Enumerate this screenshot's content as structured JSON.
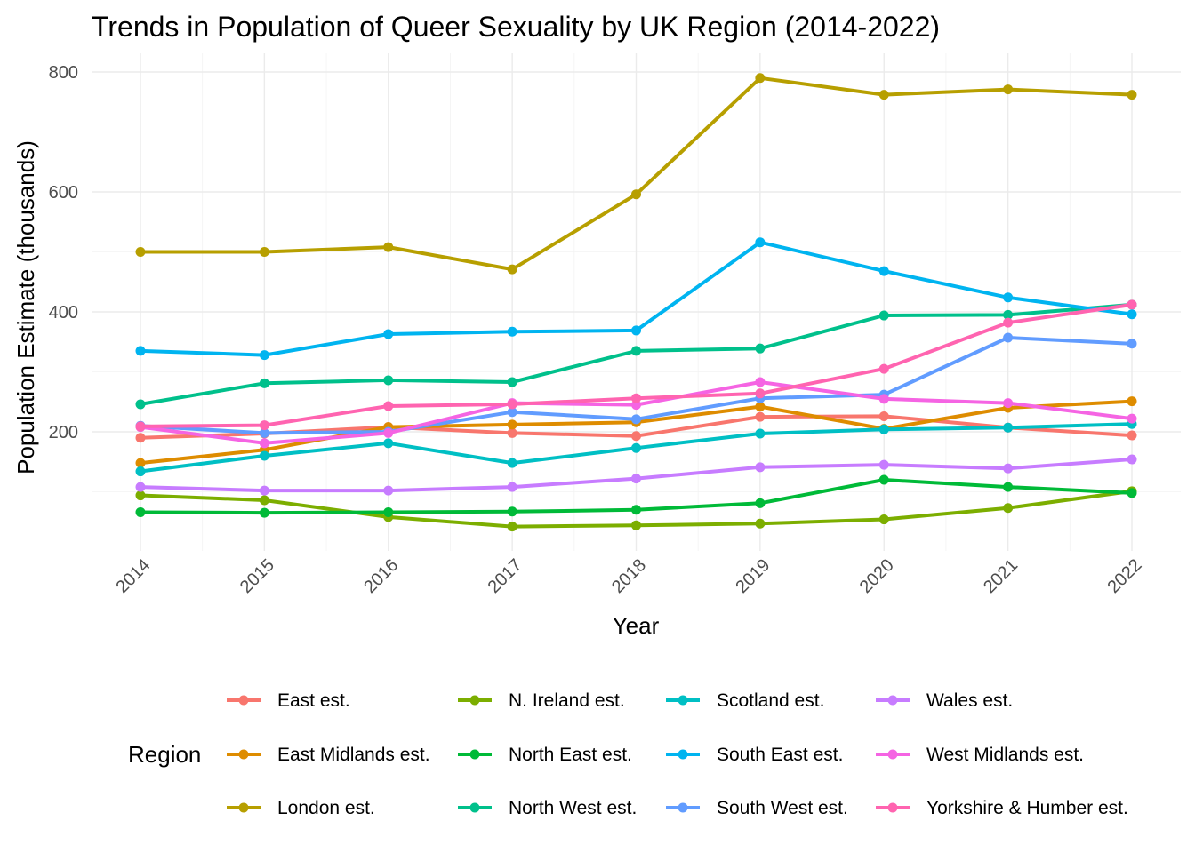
{
  "chart_data": {
    "type": "line",
    "title": "Trends in Population of Queer Sexuality by UK Region (2014-2022)",
    "xlabel": "Year",
    "ylabel": "Population Estimate (thousands)",
    "x": [
      2014,
      2015,
      2016,
      2017,
      2018,
      2019,
      2020,
      2021,
      2022
    ],
    "x_tick_labels": [
      "2014",
      "2015",
      "2016",
      "2017",
      "2018",
      "2019",
      "2020",
      "2021",
      "2022"
    ],
    "ylim": [
      20,
      815
    ],
    "y_ticks": [
      200,
      400,
      600,
      800
    ],
    "y_tick_labels": [
      "200",
      "400",
      "600",
      "800"
    ],
    "grid": true,
    "legend": {
      "title": "Region",
      "placement": "bottom",
      "columns": 4
    },
    "series": [
      {
        "name": "East est.",
        "color": "#F8766D",
        "values": [
          190,
          197,
          208,
          198,
          193,
          225,
          226,
          207,
          194
        ]
      },
      {
        "name": "East Midlands est.",
        "color": "#DE8C00",
        "values": [
          148,
          170,
          208,
          212,
          216,
          242,
          205,
          240,
          251
        ]
      },
      {
        "name": "London est.",
        "color": "#B79F00",
        "values": [
          500,
          500,
          508,
          471,
          596,
          790,
          762,
          771,
          762
        ]
      },
      {
        "name": "N. Ireland est.",
        "color": "#7CAE00",
        "values": [
          94,
          86,
          58,
          42,
          44,
          47,
          54,
          73,
          101
        ]
      },
      {
        "name": "North East est.",
        "color": "#00BA38",
        "values": [
          66,
          65,
          66,
          67,
          70,
          81,
          120,
          108,
          98
        ]
      },
      {
        "name": "North West est.",
        "color": "#00C08B",
        "values": [
          246,
          281,
          286,
          283,
          335,
          339,
          394,
          395,
          412
        ]
      },
      {
        "name": "Scotland est.",
        "color": "#00BFC4",
        "values": [
          134,
          160,
          181,
          148,
          173,
          197,
          204,
          207,
          213
        ]
      },
      {
        "name": "South East est.",
        "color": "#00B4F0",
        "values": [
          335,
          328,
          363,
          367,
          369,
          516,
          468,
          424,
          396
        ]
      },
      {
        "name": "South West est.",
        "color": "#619CFF",
        "values": [
          210,
          198,
          200,
          233,
          221,
          256,
          262,
          357,
          347
        ]
      },
      {
        "name": "Wales est.",
        "color": "#C77CFF",
        "values": [
          108,
          102,
          102,
          108,
          122,
          141,
          145,
          139,
          154
        ]
      },
      {
        "name": "West Midlands est.",
        "color": "#F564E3",
        "values": [
          208,
          181,
          198,
          248,
          245,
          283,
          255,
          248,
          222
        ]
      },
      {
        "name": "Yorkshire & Humber est.",
        "color": "#FF64B0",
        "values": [
          209,
          211,
          243,
          246,
          256,
          264,
          305,
          382,
          412
        ]
      }
    ]
  }
}
